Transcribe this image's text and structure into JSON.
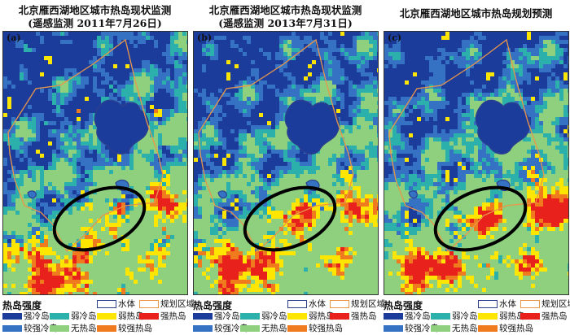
{
  "panels": [
    {
      "title_line1": "北京雁西湖地区城市热岛现状监测",
      "title_line2": "(遥感监测 2011年7月26日)",
      "label": "(a)"
    },
    {
      "title_line1": "北京雁西湖地区城市热岛现状监测",
      "title_line2": "(遥感监测 2013年7月31日)",
      "label": "(b)"
    },
    {
      "title_line1": "北京雁西湖地区城市热岛规划预测",
      "title_line2": "",
      "label": "(c)"
    }
  ],
  "legend": {
    "title": "热岛强度",
    "water": {
      "label": "水体",
      "color": "#2b3f8f"
    },
    "plan": {
      "label": "规划区域",
      "color": "#e8964a"
    },
    "classes": [
      {
        "label": "强冷岛",
        "color": "#1c3c9c"
      },
      {
        "label": "弱冷岛",
        "color": "#2bb0ac"
      },
      {
        "label": "弱热岛",
        "color": "#ffe600"
      },
      {
        "label": "强热岛",
        "color": "#e8211c"
      },
      {
        "label": "较强冷岛",
        "color": "#3672c4"
      },
      {
        "label": "无热岛",
        "color": "#8fd07e"
      },
      {
        "label": "较强热岛",
        "color": "#f07a1e"
      }
    ]
  }
}
